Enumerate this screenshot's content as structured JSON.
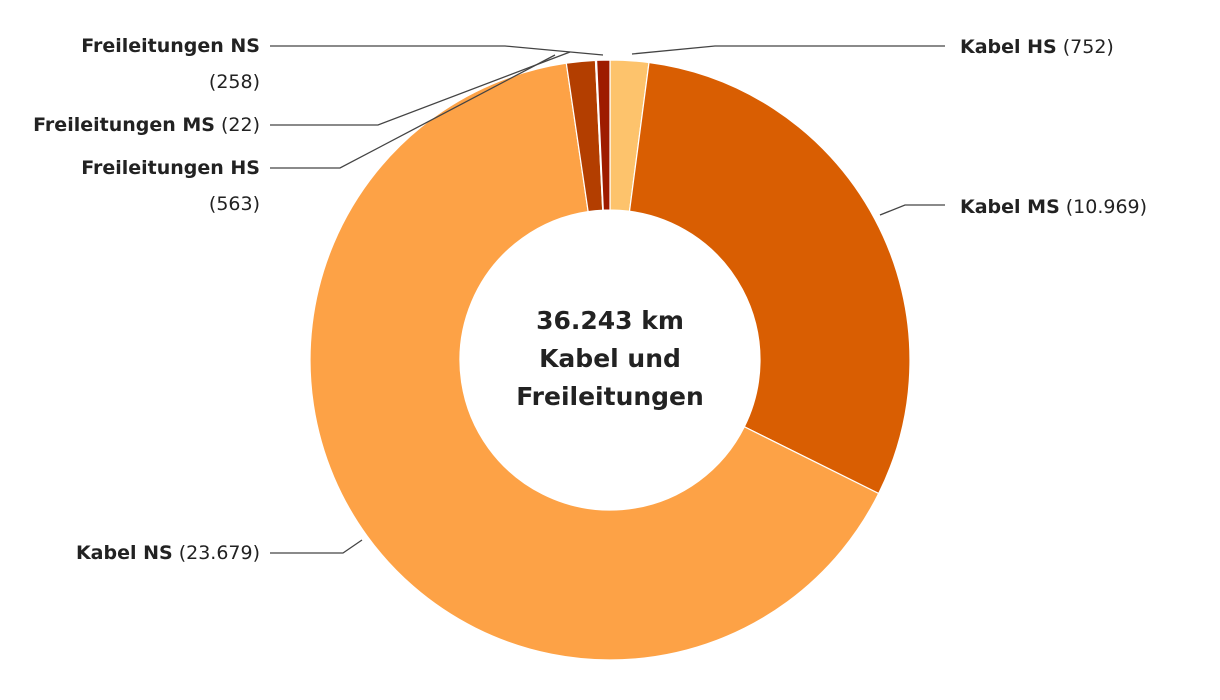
{
  "chart_data": {
    "type": "donut",
    "categories": [
      "Kabel HS",
      "Kabel MS",
      "Kabel NS",
      "Freileitungen HS",
      "Freileitungen MS",
      "Freileitungen NS"
    ],
    "values": [
      752,
      10969,
      23679,
      563,
      22,
      258
    ],
    "value_labels": [
      "(752)",
      "(10.969)",
      "(23.679)",
      "(563)",
      "(22)",
      "(258)"
    ],
    "colors": [
      "#fdc36c",
      "#d95e02",
      "#fda246",
      "#b33e00",
      "#8f2a04",
      "#9e1c00"
    ],
    "center_label": [
      "36.243 km",
      "Kabel und",
      "Freileitungen"
    ]
  }
}
